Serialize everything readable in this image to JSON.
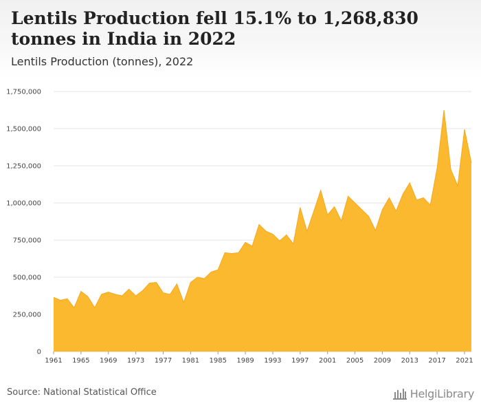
{
  "title": "Lentils Production fell 15.1% to 1,268,830 tonnes in India in 2022",
  "subtitle": "Lentils Production (tonnes), 2022",
  "source": "Source: National Statistical Office",
  "logo_text": "HelgiLibrary",
  "colors": {
    "area": "#FBB92F",
    "area_line": "#F5A81C",
    "grid": "#e6e6e6",
    "text": "#444444"
  },
  "chart_data": {
    "type": "area",
    "title": "Lentils Production (tonnes), 2022",
    "xlabel": "",
    "ylabel": "",
    "x": [
      1961,
      1962,
      1963,
      1964,
      1965,
      1966,
      1967,
      1968,
      1969,
      1970,
      1971,
      1972,
      1973,
      1974,
      1975,
      1976,
      1977,
      1978,
      1979,
      1980,
      1981,
      1982,
      1983,
      1984,
      1985,
      1986,
      1987,
      1988,
      1989,
      1990,
      1991,
      1992,
      1993,
      1994,
      1995,
      1996,
      1997,
      1998,
      1999,
      2000,
      2001,
      2002,
      2003,
      2004,
      2005,
      2006,
      2007,
      2008,
      2009,
      2010,
      2011,
      2012,
      2013,
      2014,
      2015,
      2016,
      2017,
      2018,
      2019,
      2020,
      2021,
      2022
    ],
    "values": [
      365000,
      345000,
      355000,
      295000,
      405000,
      370000,
      295000,
      385000,
      400000,
      385000,
      375000,
      420000,
      375000,
      410000,
      460000,
      465000,
      395000,
      385000,
      455000,
      330000,
      465000,
      500000,
      490000,
      535000,
      550000,
      665000,
      660000,
      665000,
      735000,
      710000,
      855000,
      810000,
      790000,
      745000,
      785000,
      725000,
      970000,
      810000,
      945000,
      1085000,
      920000,
      975000,
      880000,
      1045000,
      1000000,
      955000,
      910000,
      815000,
      955000,
      1035000,
      945000,
      1060000,
      1135000,
      1020000,
      1035000,
      985000,
      1235000,
      1625000,
      1225000,
      1115000,
      1495000,
      1268830
    ],
    "ylim": [
      0,
      1750000
    ],
    "y_ticks": [
      0,
      250000,
      500000,
      750000,
      1000000,
      1250000,
      1500000,
      1750000
    ],
    "y_tick_labels": [
      "0",
      "250,000",
      "500,000",
      "750,000",
      "1,000,000",
      "1,250,000",
      "1,500,000",
      "1,750,000"
    ],
    "x_tick_labels": [
      "1961",
      "1965",
      "1969",
      "1973",
      "1977",
      "1981",
      "1985",
      "1989",
      "1993",
      "1997",
      "2001",
      "2005",
      "2009",
      "2013",
      "2017",
      "2021"
    ],
    "grid": true,
    "legend": "none"
  }
}
